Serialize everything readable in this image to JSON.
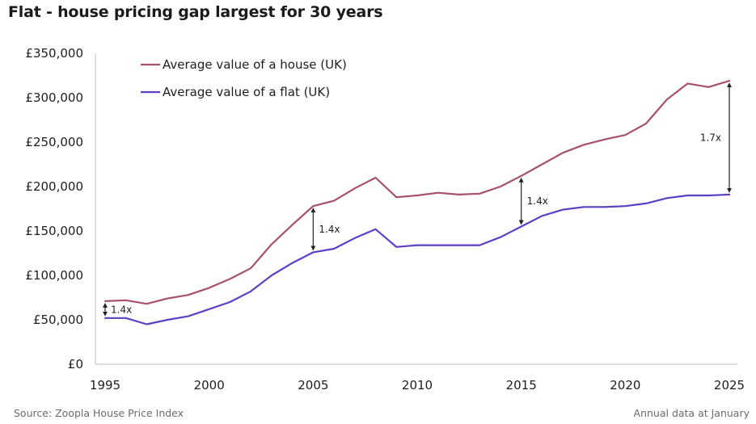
{
  "title": "Flat - house pricing gap largest for 30 years",
  "source": "Source: Zoopla House Price Index",
  "note": "Annual data at January",
  "chart_data": {
    "type": "line",
    "x": [
      1995,
      1996,
      1997,
      1998,
      1999,
      2000,
      2001,
      2002,
      2003,
      2004,
      2005,
      2006,
      2007,
      2008,
      2009,
      2010,
      2011,
      2012,
      2013,
      2014,
      2015,
      2016,
      2017,
      2018,
      2019,
      2020,
      2021,
      2022,
      2023,
      2024,
      2025
    ],
    "xticks": [
      1995,
      2000,
      2005,
      2010,
      2015,
      2020,
      2025
    ],
    "xtick_labels": [
      "1995",
      "2000",
      "2005",
      "2010",
      "2015",
      "2020",
      "2025"
    ],
    "yticks": [
      0,
      50000,
      100000,
      150000,
      200000,
      250000,
      300000,
      350000
    ],
    "ytick_labels": [
      "£0",
      "£50,000",
      "£100,000",
      "£150,000",
      "£200,000",
      "£250,000",
      "£300,000",
      "£350,000"
    ],
    "xlim": [
      1995,
      2025
    ],
    "ylim": [
      0,
      350000
    ],
    "grid": false,
    "legend_position": "top-left",
    "series": [
      {
        "name": "Average value of a house (UK)",
        "color": "#a7506e",
        "values": [
          71000,
          72000,
          68000,
          74000,
          78000,
          86000,
          96000,
          108000,
          135000,
          157000,
          178000,
          184000,
          198000,
          210000,
          188000,
          190000,
          193000,
          191000,
          192000,
          200000,
          212000,
          225000,
          238000,
          247000,
          253000,
          258000,
          271000,
          298000,
          316000,
          312000,
          319000
        ]
      },
      {
        "name": "Average value of a flat (UK)",
        "color": "#5c3fc4",
        "values": [
          52000,
          52000,
          45000,
          50000,
          54000,
          62000,
          70000,
          82000,
          100000,
          114000,
          126000,
          130000,
          142000,
          152000,
          132000,
          134000,
          134000,
          134000,
          134000,
          143000,
          155000,
          167000,
          174000,
          177000,
          177000,
          178000,
          181000,
          187000,
          190000,
          190000,
          191000
        ]
      }
    ],
    "annotations": [
      {
        "label": "1.4x",
        "x": 1995,
        "from": 52000,
        "to": 71000
      },
      {
        "label": "1.4x",
        "x": 2005,
        "from": 126000,
        "to": 178000
      },
      {
        "label": "1.4x",
        "x": 2015,
        "from": 155000,
        "to": 212000
      },
      {
        "label": "1.7x",
        "x": 2025,
        "from": 191000,
        "to": 319000
      }
    ]
  }
}
